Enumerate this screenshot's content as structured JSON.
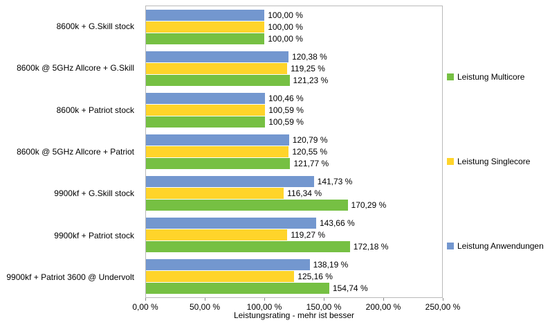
{
  "chart_data": {
    "type": "bar",
    "orientation": "horizontal",
    "title": "",
    "xlabel": "Leistungsrating - mehr ist besser",
    "ylabel": "",
    "xlim": [
      0,
      250
    ],
    "grid": false,
    "legend_position": "right",
    "x_ticks": [
      {
        "value": 0,
        "label": "0,00 %"
      },
      {
        "value": 50,
        "label": "50,00 %"
      },
      {
        "value": 100,
        "label": "100,00 %"
      },
      {
        "value": 150,
        "label": "150,00 %"
      },
      {
        "value": 200,
        "label": "200,00 %"
      },
      {
        "value": 250,
        "label": "250,00 %"
      }
    ],
    "categories": [
      "8600k + G.Skill stock",
      "8600k @ 5GHz Allcore + G.Skill",
      "8600k + Patriot stock",
      "8600k @ 5GHz Allcore + Patriot",
      "9900kf + G.Skill stock",
      "9900kf + Patriot stock",
      "9900kf + Patriot 3600 @ Undervolt"
    ],
    "series": [
      {
        "name": "Leistung Anwendungen",
        "color": "#7397CF",
        "values": [
          100.0,
          120.38,
          100.46,
          120.79,
          141.73,
          143.66,
          138.19
        ],
        "labels": [
          "100,00 %",
          "120,38 %",
          "100,46 %",
          "120,79 %",
          "141,73 %",
          "143,66 %",
          "138,19 %"
        ]
      },
      {
        "name": "Leistung Singlecore",
        "color": "#FFD42A",
        "values": [
          100.0,
          119.25,
          100.59,
          120.55,
          116.34,
          119.27,
          125.16
        ],
        "labels": [
          "100,00 %",
          "119,25 %",
          "100,59 %",
          "120,55 %",
          "116,34 %",
          "119,27 %",
          "125,16 %"
        ]
      },
      {
        "name": "Leistung Multicore",
        "color": "#76C043",
        "values": [
          100.0,
          121.23,
          100.59,
          121.77,
          170.29,
          172.18,
          154.74
        ],
        "labels": [
          "100,00 %",
          "121,23 %",
          "100,59 %",
          "121,77 %",
          "170,29 %",
          "172,18 %",
          "154,74 %"
        ]
      }
    ],
    "legend": [
      {
        "label": "Leistung Multicore",
        "color": "#76C043"
      },
      {
        "label": "Leistung Singlecore",
        "color": "#FFD42A"
      },
      {
        "label": "Leistung Anwendungen",
        "color": "#7397CF"
      }
    ]
  }
}
